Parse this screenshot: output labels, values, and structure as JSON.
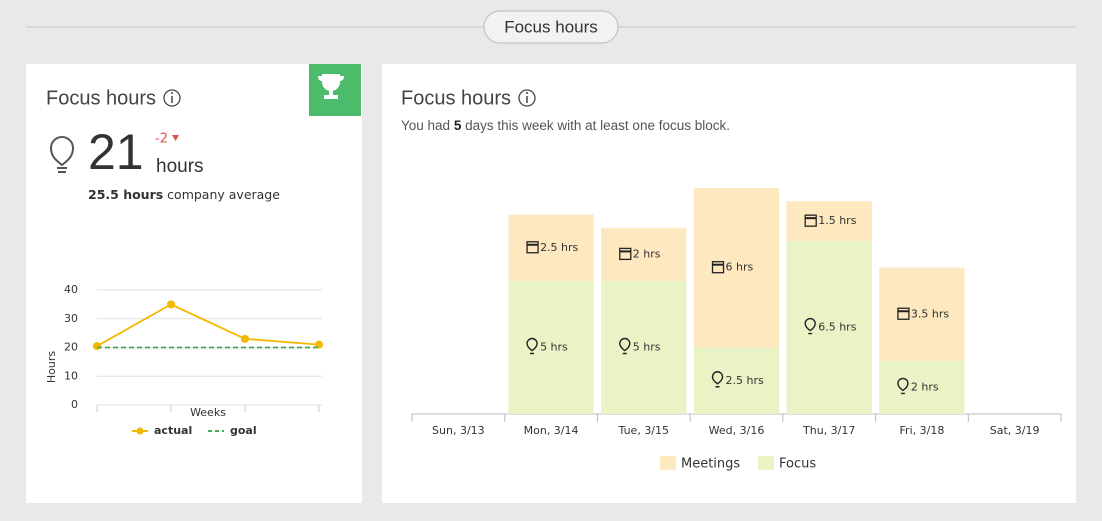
{
  "header": {
    "title": "Focus hours"
  },
  "summary": {
    "title": "Focus hours",
    "value": 21,
    "unit": "hours",
    "change": -2,
    "average": "25.5 hours",
    "average_label": "company average"
  },
  "detail": {
    "title": "Focus hours",
    "subtitle_before": "You had",
    "days": 5,
    "subtitle_after": "days this week with at least one focus block."
  },
  "chart_data": [
    {
      "type": "line",
      "xlabel": "Weeks",
      "ylabel": "Hours",
      "categories": [
        null,
        null,
        null,
        null
      ],
      "ylim": [
        0,
        40
      ],
      "yticks": [
        0,
        10,
        20,
        30,
        40
      ],
      "grid": true,
      "series": [
        {
          "name": "actual",
          "color": "#f5b800",
          "marker": "circle",
          "linestyle": "solid",
          "values": [
            20.5,
            35,
            23,
            21
          ]
        },
        {
          "name": "goal",
          "color": "#3fae56",
          "marker": "none",
          "linestyle": "dashed",
          "values": [
            20,
            20,
            20,
            20
          ]
        }
      ]
    },
    {
      "type": "stacked-bar",
      "categories": [
        "Sun, 3/13",
        "Mon, 3/14",
        "Tue, 3/15",
        "Wed, 3/16",
        "Thu, 3/17",
        "Fri, 3/18",
        "Sat, 3/19"
      ],
      "ylim": [
        0,
        10
      ],
      "series": [
        {
          "name": "Meetings",
          "color": "#fde8c0",
          "icon": "calendar",
          "values": [
            null,
            2.5,
            2,
            6,
            1.5,
            3.5,
            null
          ],
          "value_labels": [
            null,
            "2.5 hrs",
            "2 hrs",
            "6 hrs",
            "1.5 hrs",
            "3.5 hrs",
            null
          ]
        },
        {
          "name": "Focus",
          "color": "#e9f3c6",
          "icon": "bulb",
          "values": [
            null,
            5,
            5,
            2.5,
            6.5,
            2,
            null
          ],
          "value_labels": [
            null,
            "5 hrs",
            "5 hrs",
            "2.5 hrs",
            "6.5 hrs",
            "2 hrs",
            null
          ]
        }
      ]
    }
  ]
}
